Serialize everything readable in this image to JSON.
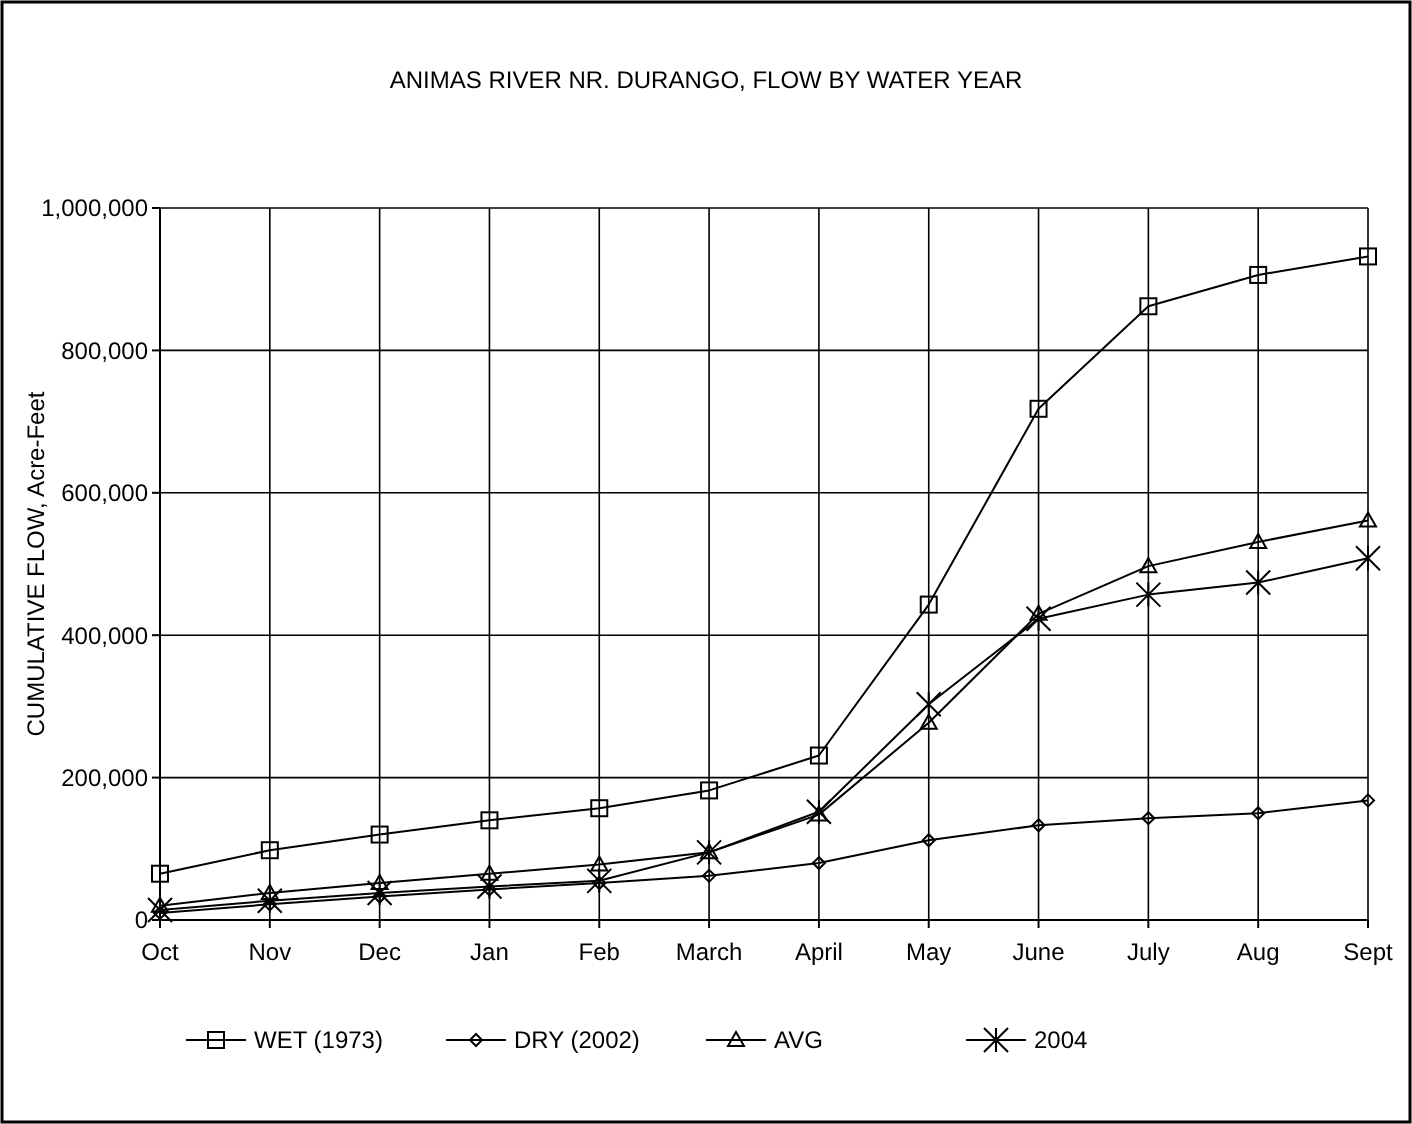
{
  "chart_data": {
    "type": "line",
    "title": "ANIMAS RIVER NR. DURANGO, FLOW BY WATER YEAR",
    "ylabel": "CUMULATIVE FLOW, Acre-Feet",
    "categories": [
      "Oct",
      "Nov",
      "Dec",
      "Jan",
      "Feb",
      "March",
      "April",
      "May",
      "June",
      "July",
      "Aug",
      "Sept"
    ],
    "ylim": [
      0,
      1000000
    ],
    "yticks": [
      {
        "value": 0,
        "label": "0"
      },
      {
        "value": 200000,
        "label": "200,000"
      },
      {
        "value": 400000,
        "label": "400,000"
      },
      {
        "value": 600000,
        "label": "600,000"
      },
      {
        "value": 800000,
        "label": "800,000"
      },
      {
        "value": 1000000,
        "label": "1,000,000"
      }
    ],
    "grid": true,
    "legend": "bottom",
    "series": [
      {
        "name": "WET (1973)",
        "color": "#000000",
        "marker": "square",
        "values": [
          65000,
          98000,
          120000,
          140000,
          157000,
          182000,
          231000,
          443000,
          718000,
          862000,
          906000,
          932000
        ]
      },
      {
        "name": "DRY (2002)",
        "color": "#000000",
        "marker": "diamond",
        "values": [
          10000,
          22000,
          33000,
          43000,
          52000,
          62000,
          80000,
          112000,
          133000,
          143000,
          150000,
          168000
        ]
      },
      {
        "name": "AVG",
        "color": "#000000",
        "marker": "triangle",
        "values": [
          20000,
          38000,
          52000,
          65000,
          78000,
          95000,
          148000,
          277000,
          430000,
          497000,
          531000,
          561000
        ]
      },
      {
        "name": "2004",
        "color": "#000000",
        "marker": "cross",
        "values": [
          14000,
          27000,
          38000,
          47000,
          55000,
          95000,
          152000,
          303000,
          423000,
          457000,
          474000,
          508000
        ]
      }
    ]
  }
}
